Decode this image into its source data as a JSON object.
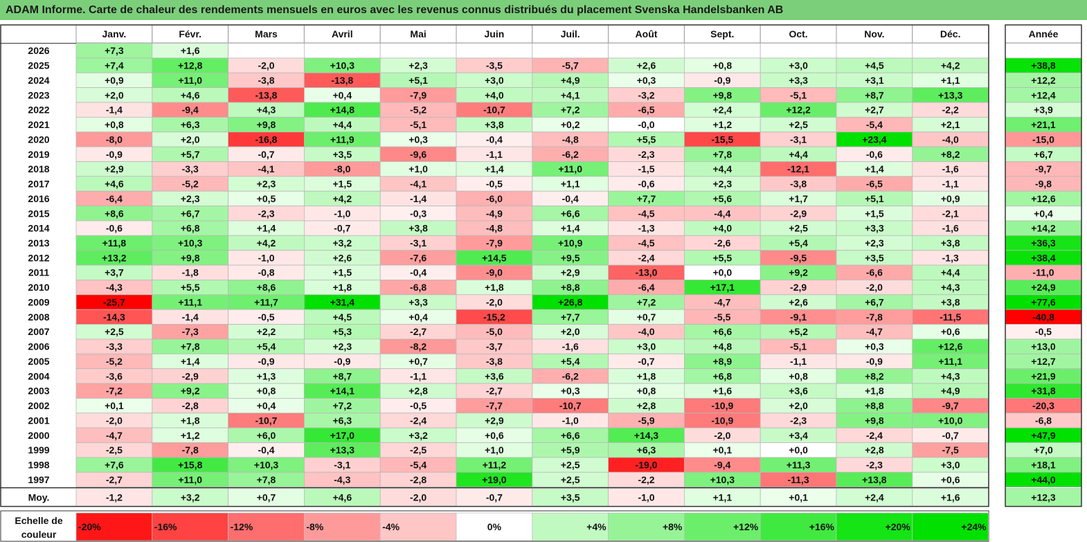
{
  "title": "ADAM Informe. Carte de chaleur des rendements mensuels en euros avec les revenus connus distribués du placement Svenska Handelsbanken AB",
  "chart_data": {
    "type": "heatmap",
    "columns": [
      "Janv.",
      "Févr.",
      "Mars",
      "Avril",
      "Mai",
      "Juin",
      "Juil.",
      "Août",
      "Sept.",
      "Oct.",
      "Nov.",
      "Déc."
    ],
    "year_header": "Année",
    "rows": [
      {
        "label": "2026",
        "values": [
          "+7,3",
          "+1,6",
          "",
          "",
          "",
          "",
          "",
          "",
          "",
          "",
          "",
          ""
        ],
        "year": ""
      },
      {
        "label": "2025",
        "values": [
          "+7,4",
          "+12,8",
          "-2,0",
          "+10,3",
          "+2,3",
          "-3,5",
          "-5,7",
          "+2,6",
          "+0,8",
          "+3,0",
          "+4,5",
          "+4,2"
        ],
        "year": "+38,8"
      },
      {
        "label": "2024",
        "values": [
          "+0,9",
          "+11,0",
          "-3,8",
          "-13,8",
          "+5,1",
          "+3,0",
          "+4,9",
          "+0,3",
          "-0,9",
          "+3,3",
          "+3,1",
          "+1,1"
        ],
        "year": "+12,2"
      },
      {
        "label": "2023",
        "values": [
          "+2,0",
          "+4,6",
          "-13,8",
          "+0,4",
          "-7,9",
          "+4,0",
          "+4,1",
          "-3,2",
          "+9,8",
          "-5,1",
          "+8,7",
          "+13,3"
        ],
        "year": "+12,4"
      },
      {
        "label": "2022",
        "values": [
          "-1,4",
          "-9,4",
          "+4,3",
          "+14,8",
          "-5,2",
          "-10,7",
          "+7,2",
          "-6,5",
          "+2,4",
          "+12,2",
          "+2,7",
          "-2,2"
        ],
        "year": "+3,9"
      },
      {
        "label": "2021",
        "values": [
          "+0,8",
          "+6,3",
          "+9,8",
          "+4,4",
          "-5,1",
          "+3,8",
          "+0,2",
          "-0,0",
          "+1,2",
          "+2,5",
          "-5,4",
          "+2,1"
        ],
        "year": "+21,1"
      },
      {
        "label": "2020",
        "values": [
          "-8,0",
          "+2,0",
          "-16,8",
          "+11,9",
          "+0,3",
          "-0,4",
          "-4,8",
          "+5,5",
          "-15,5",
          "-3,1",
          "+23,4",
          "-4,0"
        ],
        "year": "-15,0"
      },
      {
        "label": "2019",
        "values": [
          "-0,9",
          "+5,7",
          "-0,7",
          "+3,5",
          "-9,6",
          "-1,1",
          "-6,2",
          "-2,3",
          "+7,8",
          "+4,4",
          "-0,6",
          "+8,2"
        ],
        "year": "+6,7"
      },
      {
        "label": "2018",
        "values": [
          "+2,9",
          "-3,3",
          "-4,1",
          "-8,0",
          "+1,0",
          "+1,4",
          "+11,0",
          "-1,5",
          "+4,4",
          "-12,1",
          "+1,4",
          "-1,6"
        ],
        "year": "-9,7"
      },
      {
        "label": "2017",
        "values": [
          "+4,6",
          "-5,2",
          "+2,3",
          "+1,5",
          "-4,1",
          "-0,5",
          "+1,1",
          "-0,6",
          "+2,3",
          "-3,8",
          "-6,5",
          "-1,1"
        ],
        "year": "-9,8"
      },
      {
        "label": "2016",
        "values": [
          "-6,4",
          "+2,3",
          "+0,5",
          "+4,2",
          "-1,4",
          "-6,0",
          "-0,4",
          "+7,7",
          "+5,6",
          "+1,7",
          "+5,1",
          "+0,9"
        ],
        "year": "+12,6"
      },
      {
        "label": "2015",
        "values": [
          "+8,6",
          "+6,7",
          "-2,3",
          "-1,0",
          "-0,3",
          "-4,9",
          "+6,6",
          "-4,5",
          "-4,4",
          "-2,9",
          "+1,5",
          "-2,1"
        ],
        "year": "+0,4"
      },
      {
        "label": "2014",
        "values": [
          "-0,6",
          "+6,8",
          "+1,4",
          "-0,7",
          "+3,8",
          "-4,8",
          "+1,4",
          "-1,3",
          "+4,0",
          "+2,5",
          "+3,3",
          "-1,6"
        ],
        "year": "+14,2"
      },
      {
        "label": "2013",
        "values": [
          "+11,8",
          "+10,3",
          "+4,2",
          "+3,2",
          "-3,1",
          "-7,9",
          "+10,9",
          "-4,5",
          "-2,6",
          "+5,4",
          "+2,3",
          "+3,8"
        ],
        "year": "+36,3"
      },
      {
        "label": "2012",
        "values": [
          "+13,2",
          "+9,8",
          "-1,0",
          "+2,6",
          "-7,6",
          "+14,5",
          "+9,5",
          "-2,4",
          "+5,5",
          "-9,5",
          "+3,5",
          "-1,3"
        ],
        "year": "+38,4"
      },
      {
        "label": "2011",
        "values": [
          "+3,7",
          "-1,8",
          "-0,8",
          "+1,5",
          "-0,4",
          "-9,0",
          "+2,9",
          "-13,0",
          "+0,0",
          "+9,2",
          "-6,6",
          "+4,4"
        ],
        "year": "-11,0"
      },
      {
        "label": "2010",
        "values": [
          "-4,3",
          "+5,5",
          "+8,6",
          "+1,8",
          "-6,8",
          "+1,8",
          "+8,8",
          "-6,4",
          "+17,1",
          "-2,9",
          "-2,0",
          "+4,3"
        ],
        "year": "+24,9"
      },
      {
        "label": "2009",
        "values": [
          "-25,7",
          "+11,1",
          "+11,7",
          "+31,4",
          "+3,3",
          "-2,0",
          "+26,8",
          "+7,2",
          "-4,7",
          "+2,6",
          "+6,7",
          "+3,8"
        ],
        "year": "+77,6"
      },
      {
        "label": "2008",
        "values": [
          "-14,3",
          "-1,4",
          "-0,5",
          "+4,5",
          "+0,4",
          "-15,2",
          "+7,7",
          "+0,7",
          "-5,5",
          "-9,1",
          "-7,8",
          "-11,5"
        ],
        "year": "-40,8"
      },
      {
        "label": "2007",
        "values": [
          "+2,5",
          "-7,3",
          "+2,2",
          "+5,3",
          "-2,7",
          "-5,0",
          "+2,0",
          "-4,0",
          "+6,6",
          "+5,2",
          "-4,7",
          "+0,6"
        ],
        "year": "-0,5"
      },
      {
        "label": "2006",
        "values": [
          "-3,3",
          "+7,8",
          "+5,4",
          "+2,3",
          "-8,2",
          "-3,7",
          "-1,6",
          "+3,0",
          "+4,8",
          "-5,1",
          "+0,3",
          "+12,6"
        ],
        "year": "+13,0"
      },
      {
        "label": "2005",
        "values": [
          "-5,2",
          "+1,4",
          "-0,9",
          "-0,9",
          "+0,7",
          "-3,8",
          "+5,4",
          "-0,7",
          "+8,9",
          "-1,1",
          "-0,9",
          "+11,1"
        ],
        "year": "+12,7"
      },
      {
        "label": "2004",
        "values": [
          "-3,6",
          "-2,9",
          "+1,3",
          "+8,7",
          "-1,1",
          "+3,6",
          "-6,2",
          "+1,8",
          "+6,8",
          "+0,8",
          "+8,2",
          "+4,3"
        ],
        "year": "+21,9"
      },
      {
        "label": "2003",
        "values": [
          "-7,2",
          "+9,2",
          "+0,8",
          "+14,1",
          "+2,8",
          "-2,7",
          "+0,3",
          "+0,8",
          "+1,6",
          "+3,6",
          "+1,8",
          "+4,9"
        ],
        "year": "+31,8"
      },
      {
        "label": "2002",
        "values": [
          "+0,1",
          "-2,8",
          "+0,4",
          "+7,2",
          "-0,5",
          "-7,7",
          "-10,7",
          "+2,8",
          "-10,9",
          "+2,0",
          "+8,8",
          "-9,7"
        ],
        "year": "-20,3"
      },
      {
        "label": "2001",
        "values": [
          "-2,0",
          "+1,8",
          "-10,7",
          "+6,3",
          "-2,4",
          "+2,9",
          "-1,0",
          "-5,9",
          "-10,9",
          "-2,3",
          "+9,8",
          "+10,0"
        ],
        "year": "-6,8"
      },
      {
        "label": "2000",
        "values": [
          "-4,7",
          "+1,2",
          "+6,0",
          "+17,0",
          "+3,2",
          "+0,6",
          "+6,6",
          "+14,3",
          "-2,0",
          "+3,4",
          "-2,4",
          "-0,7"
        ],
        "year": "+47,9"
      },
      {
        "label": "1999",
        "values": [
          "-2,5",
          "-7,8",
          "-0,4",
          "+13,3",
          "-2,5",
          "+1,0",
          "+5,9",
          "+6,3",
          "+0,1",
          "+0,0",
          "+2,8",
          "-7,5"
        ],
        "year": "+7,0"
      },
      {
        "label": "1998",
        "values": [
          "+7,6",
          "+15,8",
          "+10,3",
          "-3,1",
          "-5,4",
          "+11,2",
          "+2,5",
          "-19,0",
          "-9,4",
          "+11,3",
          "-2,3",
          "+3,0"
        ],
        "year": "+18,1"
      },
      {
        "label": "1997",
        "values": [
          "-2,7",
          "+11,0",
          "+7,8",
          "-4,3",
          "-2,8",
          "+19,0",
          "+2,5",
          "-2,2",
          "+10,3",
          "-11,3",
          "+13,8",
          "+0,6"
        ],
        "year": "+44,0"
      }
    ],
    "average_row": {
      "label": "Moy.",
      "values": [
        "-1,2",
        "+3,2",
        "+0,7",
        "+4,6",
        "-2,0",
        "-0,7",
        "+3,5",
        "-1,0",
        "+1,1",
        "+0,1",
        "+2,4",
        "+1,6"
      ],
      "year": "+12,3"
    },
    "scale": {
      "label_line1": "Echelle de",
      "label_line2": "couleur",
      "stops": [
        "-20%",
        "-16%",
        "-12%",
        "-8%",
        "-4%",
        "0%",
        "+4%",
        "+8%",
        "+12%",
        "+16%",
        "+20%",
        "+24%"
      ]
    },
    "colors": {
      "negative_max": "#ff0000",
      "neutral": "#ffffff",
      "positive_max": "#00e000",
      "title_bar": "#7ccf7a"
    }
  }
}
